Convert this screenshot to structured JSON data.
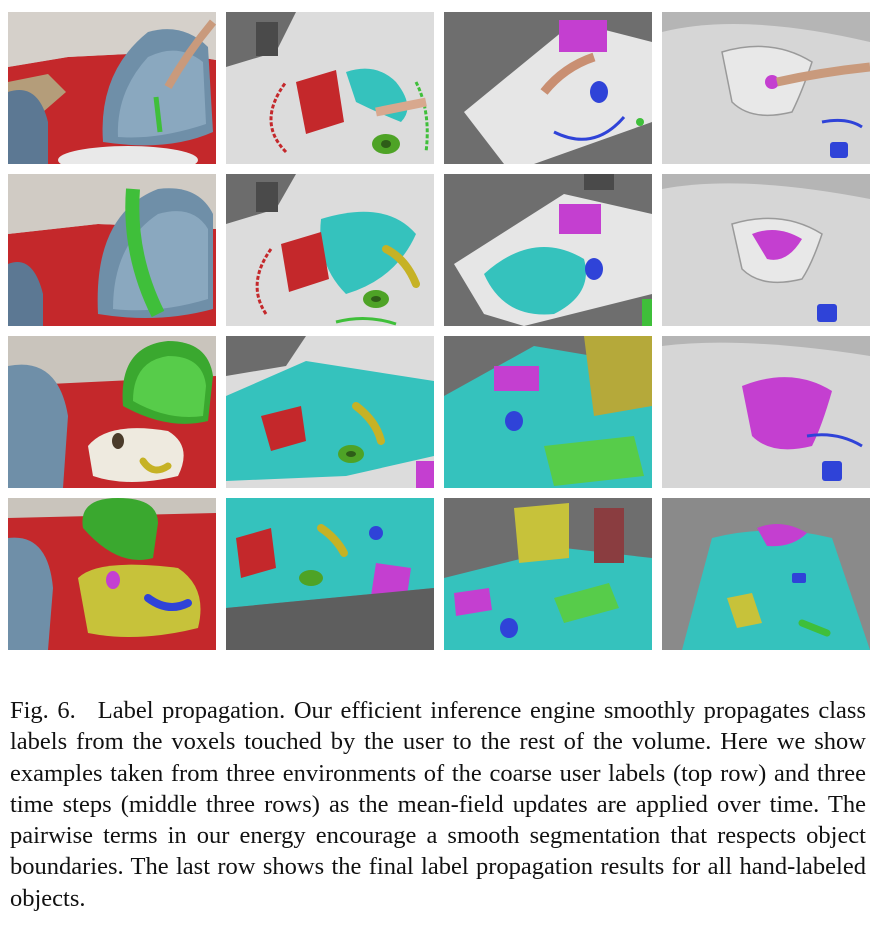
{
  "figure": {
    "label": "Fig. 6.",
    "caption": "Label propagation. Our efficient inference engine smoothly propagates class labels from the voxels touched by the user to the rest of the volume. Here we show examples taken from three environments of the coarse user labels (top row) and three time steps (middle three rows) as the mean-field updates are applied over time. The pairwise terms in our energy encourage a smooth segmentation that respects object boundaries. The last row shows the final label propagation results for all hand-labeled objects.",
    "rows": 4,
    "columns": 4
  },
  "colors": {
    "floor_label": "#c4282b",
    "chair_label": "#3fbf3a",
    "table_label": "#d8d24a",
    "surface_label": "#35c2bd",
    "book_label": "#c43fd0",
    "blue_label": "#2f43d8",
    "green_object": "#4ea326",
    "unlabeled_mesh": "#a9a9a9",
    "chair_unlabeled": "#6f8fa8"
  }
}
